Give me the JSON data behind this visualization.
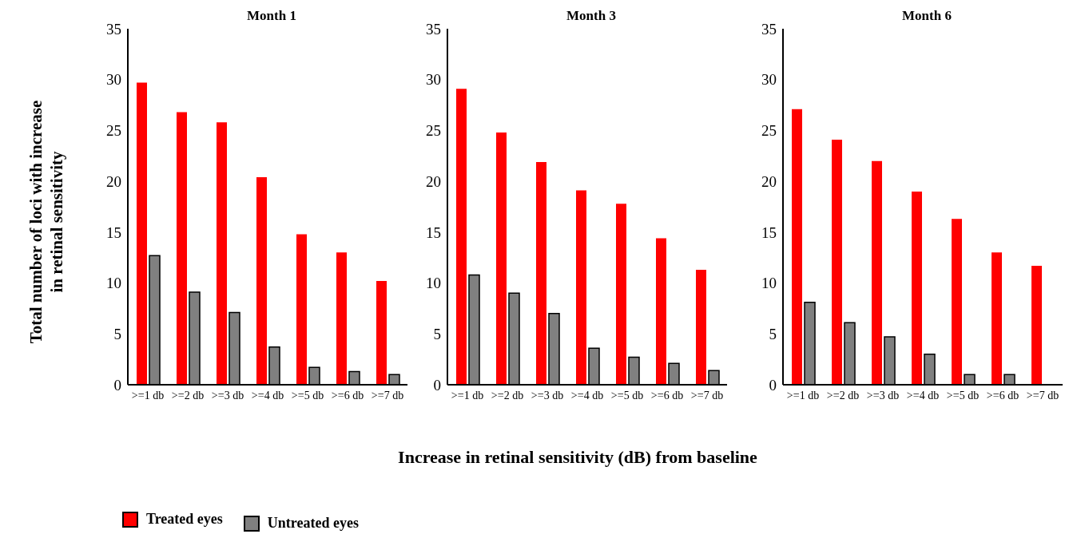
{
  "chart_data": [
    {
      "type": "bar",
      "title": "Month 1",
      "ylabel": "Total number of loci with increase in retinal sensitivity",
      "categories": [
        ">=1 db",
        ">=2 db",
        ">=3 db",
        ">=4 db",
        ">=5 db",
        ">=6 db",
        ">=7 db"
      ],
      "ylim": [
        0,
        35
      ],
      "yticks": [
        0,
        5,
        10,
        15,
        20,
        25,
        30,
        35
      ],
      "grid": false,
      "legend": "bottom",
      "series": [
        {
          "name": "Treated eyes",
          "color": "#ff0000",
          "values": [
            29.7,
            26.8,
            25.8,
            20.4,
            14.8,
            13.0,
            10.2
          ]
        },
        {
          "name": "Untreated eyes",
          "color": "#808080",
          "values": [
            12.7,
            9.1,
            7.1,
            3.7,
            1.7,
            1.3,
            1.0
          ]
        }
      ]
    },
    {
      "type": "bar",
      "title": "Month 3",
      "xlabel": "Increase in retinal sensitivity (dB) from baseline",
      "categories": [
        ">=1 db",
        ">=2 db",
        ">=3 db",
        ">=4 db",
        ">=5 db",
        ">=6 db",
        ">=7 db"
      ],
      "ylim": [
        0,
        35
      ],
      "yticks": [
        0,
        5,
        10,
        15,
        20,
        25,
        30,
        35
      ],
      "grid": false,
      "series": [
        {
          "color": "#ff0000",
          "values": [
            29.1,
            24.8,
            21.9,
            19.1,
            17.8,
            14.4,
            11.3
          ]
        },
        {
          "color": "#808080",
          "values": [
            10.8,
            9.0,
            7.0,
            3.6,
            2.7,
            2.1,
            1.4
          ]
        }
      ]
    },
    {
      "type": "bar",
      "title": "Month 6",
      "categories": [
        ">=1 db",
        ">=2 db",
        ">=3 db",
        ">=4 db",
        ">=5 db",
        ">=6 db",
        ">=7 db"
      ],
      "ylim": [
        0,
        35
      ],
      "yticks": [
        0,
        5,
        10,
        15,
        20,
        25,
        30,
        35
      ],
      "grid": false,
      "series": [
        {
          "color": "#ff0000",
          "values": [
            27.1,
            24.1,
            22.0,
            19.0,
            16.3,
            13.0,
            11.7
          ]
        },
        {
          "color": "#808080",
          "values": [
            8.1,
            6.1,
            4.7,
            3.0,
            1.0,
            1.0,
            0
          ]
        }
      ]
    }
  ]
}
